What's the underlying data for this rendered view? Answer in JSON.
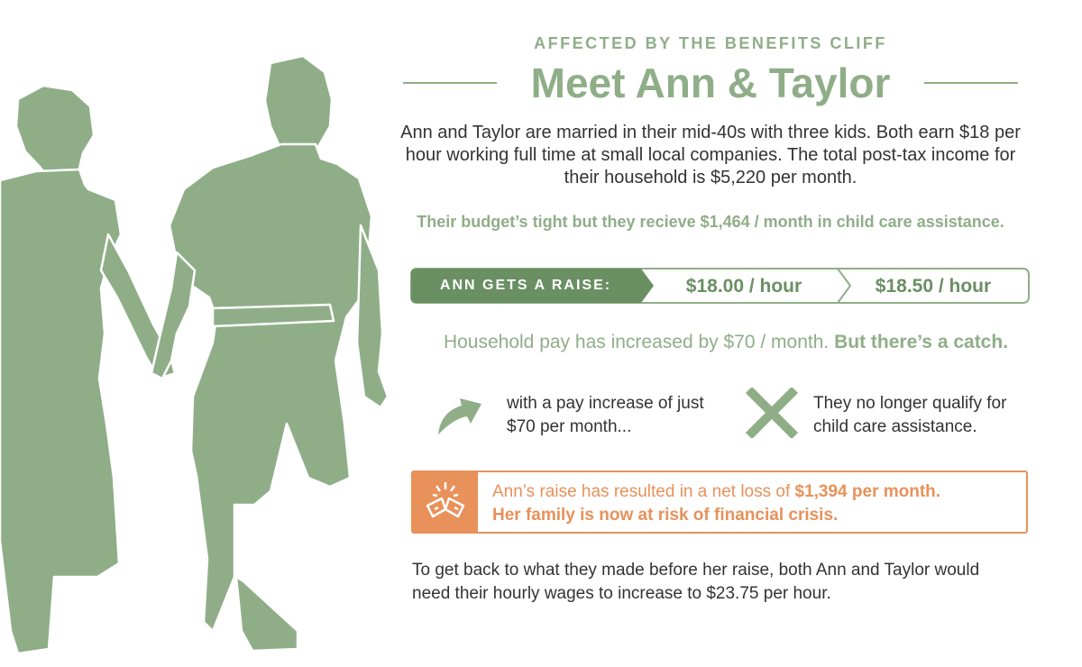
{
  "header": {
    "kicker": "AFFECTED BY THE BENEFITS CLIFF",
    "title": "Meet Ann & Taylor"
  },
  "intro": {
    "line1": "Ann and Taylor are married in their mid-40s with three kids. Both earn $18 per",
    "line2": "hour working full time at small local companies. The total post-tax income for",
    "line3": "their household is $5,220 per month."
  },
  "budget_note": "Their budget’s tight but they recieve $1,464 / month in child care assistance.",
  "raise": {
    "label": "ANN GETS A RAISE:",
    "from": "$18.00 / hour",
    "to": "$18.50 / hour"
  },
  "increase": {
    "text": "Household pay has increased by $70 / month.",
    "catch": "But there’s a catch."
  },
  "points": [
    {
      "icon": "arrow-up-icon",
      "line1": "with a pay increase of just",
      "line2": "$70 per month..."
    },
    {
      "icon": "x-mark-icon",
      "line1": "They no longer qualify for",
      "line2": "child care assistance."
    }
  ],
  "alert": {
    "icon": "broken-piggy-bank-icon",
    "line1_prefix": "Ann’s raise has resulted in a net loss of ",
    "line1_amount": "$1,394 per month.",
    "line2": "Her family is now at risk of financial crisis."
  },
  "footer": {
    "line1": "To get back to what they made before her raise, both Ann and Taylor would",
    "line2": "need their hourly wages to increase to $23.75 per hour."
  },
  "colors": {
    "green": "#8fae88",
    "green_dark": "#6a8f63",
    "orange": "#e8915a",
    "text": "#333333"
  }
}
